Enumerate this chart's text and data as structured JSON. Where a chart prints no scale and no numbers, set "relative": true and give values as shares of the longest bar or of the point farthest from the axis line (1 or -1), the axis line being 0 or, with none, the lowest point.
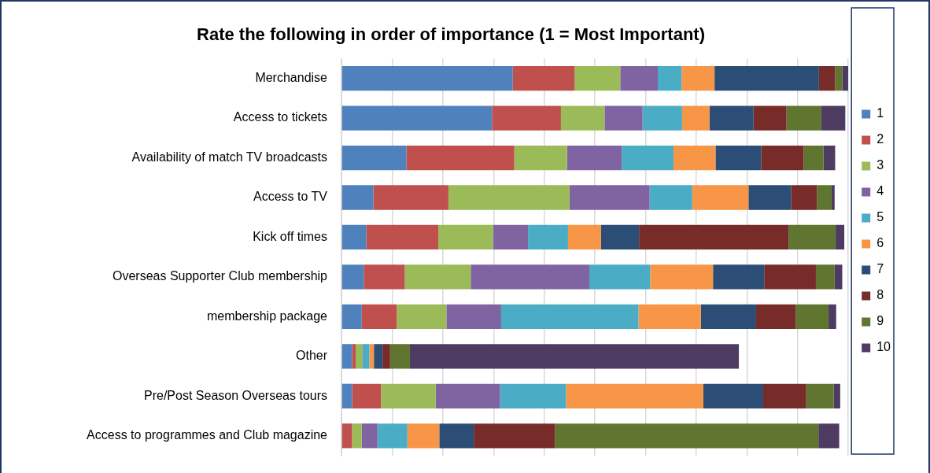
{
  "chart_data": {
    "type": "bar",
    "orientation": "horizontal",
    "stacked": true,
    "relative": true,
    "title": "Rate the following in order of importance (1 = Most Important)",
    "categories": [
      "Merchandise",
      "Access to tickets",
      "Availability of match TV broadcasts",
      "Access to TV",
      "Kick off times",
      "Overseas Supporter Club membership",
      "membership package",
      "Other",
      "Pre/Post Season Overseas tours",
      "Access to programmes and Club magazine"
    ],
    "series": [
      {
        "name": "1",
        "color": "#4f81bd",
        "values": [
          0.338,
          0.297,
          0.128,
          0.063,
          0.049,
          0.044,
          0.04,
          0.021,
          0.021,
          0
        ]
      },
      {
        "name": "2",
        "color": "#c0504d",
        "values": [
          0.122,
          0.136,
          0.213,
          0.148,
          0.142,
          0.081,
          0.069,
          0.007,
          0.057,
          0.021
        ]
      },
      {
        "name": "3",
        "color": "#9bbb59",
        "values": [
          0.09,
          0.086,
          0.104,
          0.239,
          0.108,
          0.13,
          0.098,
          0.013,
          0.108,
          0.019
        ]
      },
      {
        "name": "4",
        "color": "#8064a2",
        "values": [
          0.074,
          0.075,
          0.108,
          0.158,
          0.069,
          0.234,
          0.108,
          0.001,
          0.127,
          0.031
        ]
      },
      {
        "name": "5",
        "color": "#4bacc6",
        "values": [
          0.047,
          0.078,
          0.102,
          0.084,
          0.079,
          0.12,
          0.271,
          0.013,
          0.13,
          0.059
        ]
      },
      {
        "name": "6",
        "color": "#f79646",
        "values": [
          0.065,
          0.054,
          0.083,
          0.111,
          0.065,
          0.124,
          0.123,
          0.009,
          0.271,
          0.063
        ]
      },
      {
        "name": "7",
        "color": "#2c4d75",
        "values": [
          0.206,
          0.087,
          0.09,
          0.084,
          0.075,
          0.101,
          0.109,
          0.017,
          0.118,
          0.068
        ]
      },
      {
        "name": "8",
        "color": "#772c2a",
        "values": [
          0.032,
          0.065,
          0.084,
          0.051,
          0.295,
          0.102,
          0.078,
          0.015,
          0.085,
          0.16
        ]
      },
      {
        "name": "9",
        "color": "#5f7530",
        "values": [
          0.014,
          0.069,
          0.039,
          0.029,
          0.093,
          0.037,
          0.065,
          0.039,
          0.054,
          0.52
        ]
      },
      {
        "name": "10",
        "color": "#4d3b62",
        "values": [
          0.012,
          0.047,
          0.023,
          0.006,
          0.017,
          0.015,
          0.015,
          0.649,
          0.013,
          0.041
        ]
      }
    ],
    "grid": "x",
    "legend": "right"
  }
}
